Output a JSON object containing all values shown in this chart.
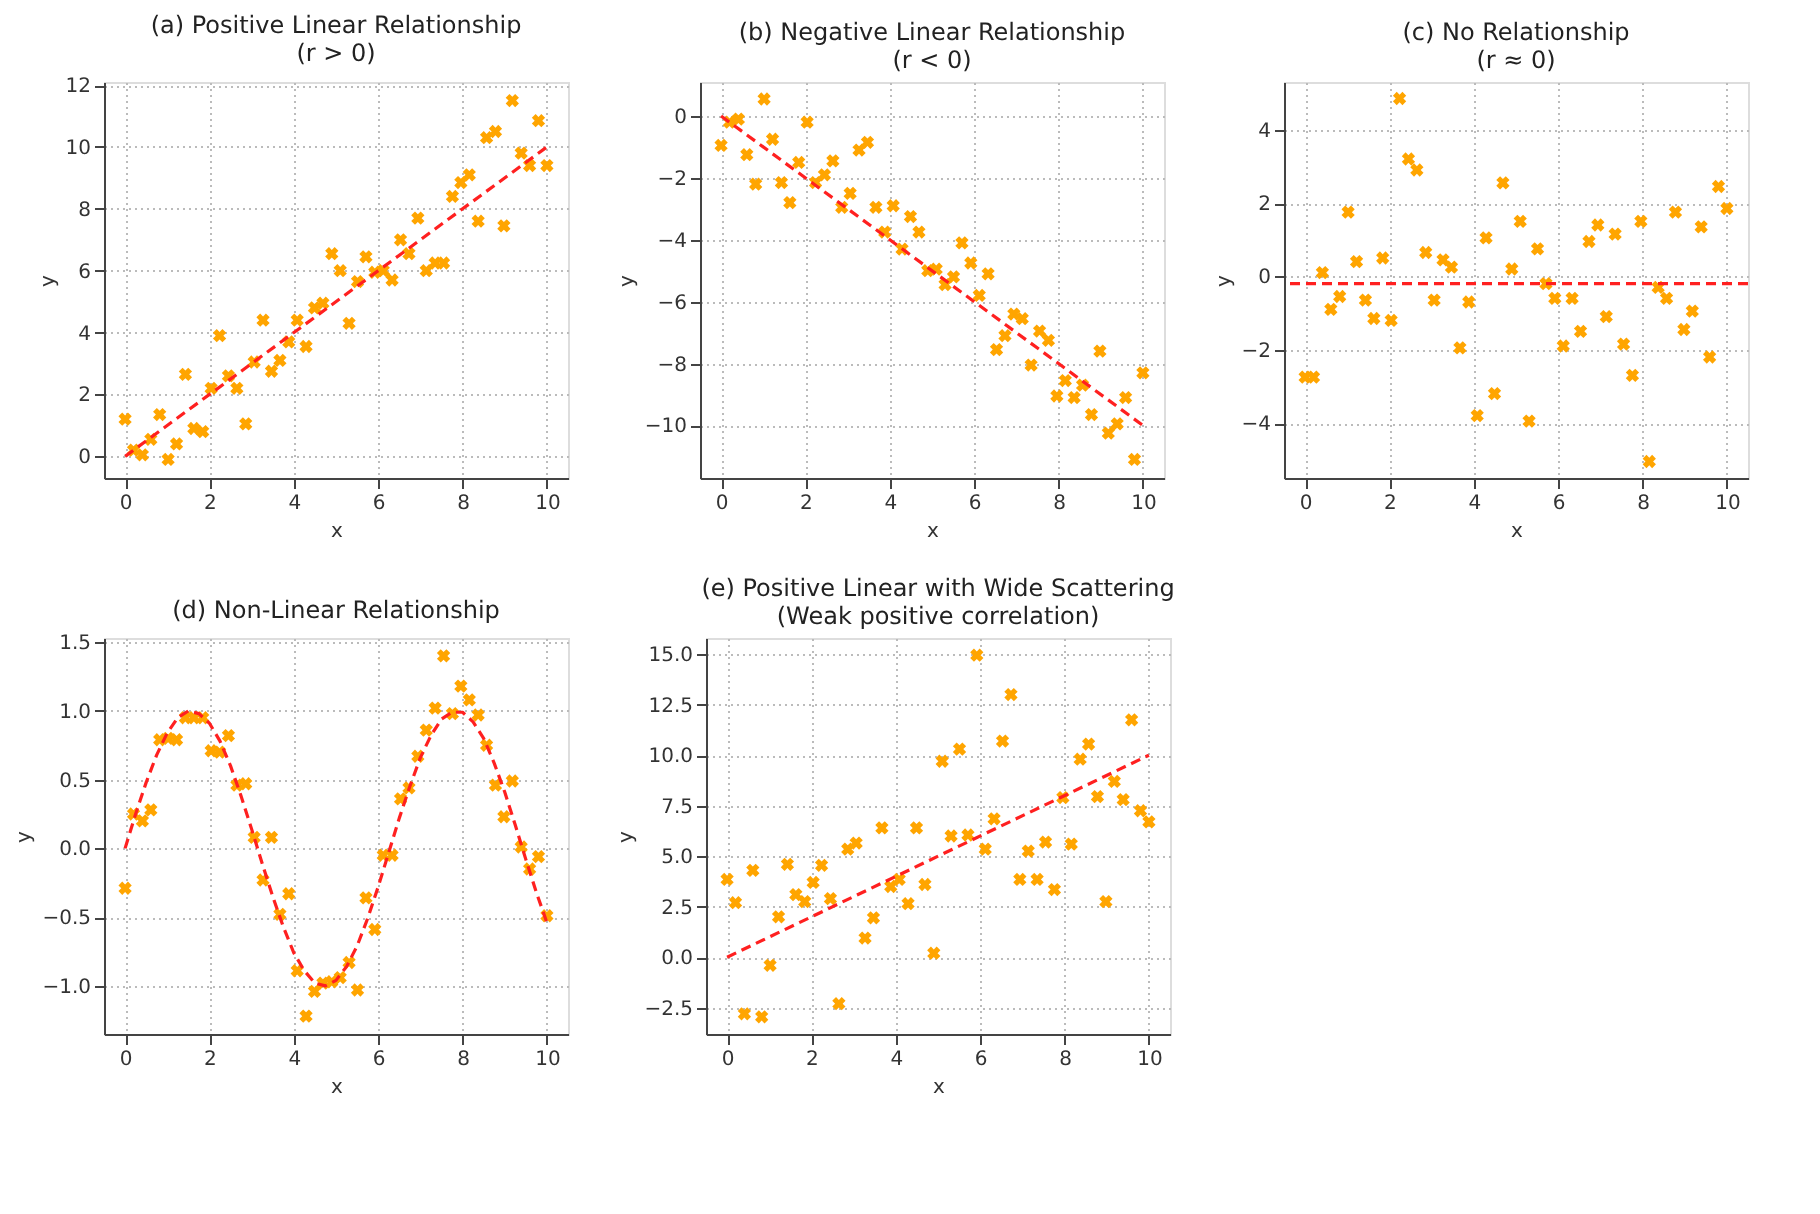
{
  "chart_data": [
    {
      "type": "scatter",
      "title": "(a) Positive Linear Relationship\n(r > 0)",
      "xlabel": "x",
      "ylabel": "y",
      "grid": true,
      "x": [
        0,
        0.2,
        0.41,
        0.61,
        0.82,
        1.02,
        1.22,
        1.43,
        1.63,
        1.84,
        2.04,
        2.24,
        2.45,
        2.65,
        2.86,
        3.06,
        3.27,
        3.47,
        3.67,
        3.88,
        4.08,
        4.29,
        4.49,
        4.69,
        4.9,
        5.1,
        5.31,
        5.51,
        5.71,
        5.92,
        6.12,
        6.33,
        6.53,
        6.73,
        6.94,
        7.14,
        7.35,
        7.55,
        7.76,
        7.96,
        8.16,
        8.37,
        8.57,
        8.78,
        8.98,
        9.18,
        9.39,
        9.59,
        9.8,
        10
      ],
      "series": [
        {
          "marker": "cross",
          "color": "#ffa500",
          "values": [
            1.2,
            0.2,
            0.05,
            0.55,
            1.35,
            -0.1,
            0.4,
            2.65,
            0.9,
            0.8,
            2.2,
            3.9,
            2.6,
            2.2,
            1.05,
            3.05,
            4.4,
            2.75,
            3.1,
            3.7,
            4.4,
            3.55,
            4.8,
            4.95,
            6.55,
            6.0,
            4.3,
            5.65,
            6.45,
            5.95,
            6.0,
            5.7,
            7.0,
            6.55,
            7.7,
            6.0,
            6.25,
            6.25,
            8.4,
            8.85,
            9.1,
            7.6,
            10.3,
            10.5,
            7.45,
            11.5,
            9.8,
            9.4,
            10.85,
            9.4
          ]
        },
        {
          "type": "line",
          "color": "#ff2020",
          "line_style": "dashed",
          "x": [
            0,
            10
          ],
          "values": [
            0,
            10
          ]
        }
      ],
      "xlim": [
        -0.5,
        10.5
      ],
      "ylim": [
        -0.7,
        12.1
      ],
      "xticks": [
        0,
        2,
        4,
        6,
        8,
        10
      ],
      "yticks": [
        0,
        2,
        4,
        6,
        8,
        10,
        12
      ]
    },
    {
      "type": "scatter",
      "title": "(b) Negative Linear Relationship\n(r < 0)",
      "xlabel": "x",
      "ylabel": "y",
      "grid": true,
      "x": [
        0,
        0.2,
        0.41,
        0.61,
        0.82,
        1.02,
        1.22,
        1.43,
        1.63,
        1.84,
        2.04,
        2.24,
        2.45,
        2.65,
        2.86,
        3.06,
        3.27,
        3.47,
        3.67,
        3.88,
        4.08,
        4.29,
        4.49,
        4.69,
        4.9,
        5.1,
        5.31,
        5.51,
        5.71,
        5.92,
        6.12,
        6.33,
        6.53,
        6.73,
        6.94,
        7.14,
        7.35,
        7.55,
        7.76,
        7.96,
        8.16,
        8.37,
        8.57,
        8.78,
        8.98,
        9.18,
        9.39,
        9.59,
        9.8,
        10
      ],
      "series": [
        {
          "marker": "cross",
          "color": "#ffa500",
          "values": [
            -0.95,
            -0.2,
            -0.1,
            -1.25,
            -2.2,
            0.55,
            -0.75,
            -2.15,
            -2.8,
            -1.5,
            -0.2,
            -2.15,
            -1.9,
            -1.45,
            -2.95,
            -2.5,
            -1.1,
            -0.85,
            -2.95,
            -3.75,
            -2.9,
            -4.3,
            -3.25,
            -3.75,
            -5.0,
            -4.95,
            -5.45,
            -5.2,
            -4.1,
            -4.75,
            -5.8,
            -5.1,
            -7.55,
            -7.1,
            -6.4,
            -6.55,
            -8.05,
            -6.95,
            -7.25,
            -9.05,
            -8.55,
            -9.1,
            -8.7,
            -9.65,
            -7.6,
            -10.25,
            -9.95,
            -9.1,
            -11.1,
            -8.3
          ]
        },
        {
          "type": "line",
          "color": "#ff2020",
          "line_style": "dashed",
          "x": [
            0,
            10
          ],
          "values": [
            0,
            -10
          ]
        }
      ],
      "xlim": [
        -0.5,
        10.5
      ],
      "ylim": [
        -11.7,
        1.1
      ],
      "xticks": [
        0,
        2,
        4,
        6,
        8,
        10
      ],
      "yticks": [
        -10,
        -8,
        -6,
        -4,
        -2,
        0
      ]
    },
    {
      "type": "scatter",
      "title": "(c) No Relationship\n(r ≈ 0)",
      "xlabel": "x",
      "ylabel": "y",
      "grid": true,
      "x": [
        0,
        0.2,
        0.41,
        0.61,
        0.82,
        1.02,
        1.22,
        1.43,
        1.63,
        1.84,
        2.04,
        2.24,
        2.45,
        2.65,
        2.86,
        3.06,
        3.27,
        3.47,
        3.67,
        3.88,
        4.08,
        4.29,
        4.49,
        4.69,
        4.9,
        5.1,
        5.31,
        5.51,
        5.71,
        5.92,
        6.12,
        6.33,
        6.53,
        6.73,
        6.94,
        7.14,
        7.35,
        7.55,
        7.76,
        7.96,
        8.16,
        8.37,
        8.57,
        8.78,
        8.98,
        9.18,
        9.39,
        9.59,
        9.8,
        10
      ],
      "series": [
        {
          "marker": "cross",
          "color": "#ffa500",
          "values": [
            -2.75,
            -2.75,
            0.1,
            -0.9,
            -0.55,
            1.75,
            0.4,
            -0.65,
            -1.15,
            0.5,
            -1.2,
            4.85,
            3.2,
            2.9,
            0.65,
            -0.65,
            0.45,
            0.25,
            -1.95,
            -0.7,
            -3.8,
            1.05,
            -3.2,
            2.55,
            0.2,
            1.5,
            -3.95,
            0.75,
            -0.2,
            -0.6,
            -1.9,
            -0.6,
            -1.5,
            0.95,
            1.4,
            -1.1,
            1.15,
            -1.85,
            -2.7,
            1.5,
            -5.05,
            -0.3,
            -0.6,
            1.75,
            -1.45,
            -0.95,
            1.35,
            -2.2,
            2.45,
            1.85
          ]
        }
      ],
      "ref_lines": [
        {
          "axis": "y",
          "value": -0.2,
          "color": "#ff2020",
          "line_style": "dashed"
        }
      ],
      "xlim": [
        -0.5,
        10.5
      ],
      "ylim": [
        -5.5,
        5.3
      ],
      "xticks": [
        0,
        2,
        4,
        6,
        8,
        10
      ],
      "yticks": [
        -4,
        -2,
        0,
        2,
        4
      ]
    },
    {
      "type": "scatter",
      "title": "(d) Non-Linear Relationship",
      "xlabel": "x",
      "ylabel": "y",
      "grid": true,
      "x": [
        0,
        0.2,
        0.41,
        0.61,
        0.82,
        1.02,
        1.22,
        1.43,
        1.63,
        1.84,
        2.04,
        2.24,
        2.45,
        2.65,
        2.86,
        3.06,
        3.27,
        3.47,
        3.67,
        3.88,
        4.08,
        4.29,
        4.49,
        4.69,
        4.9,
        5.1,
        5.31,
        5.51,
        5.71,
        5.92,
        6.12,
        6.33,
        6.53,
        6.73,
        6.94,
        7.14,
        7.35,
        7.55,
        7.76,
        7.96,
        8.16,
        8.37,
        8.57,
        8.78,
        8.98,
        9.18,
        9.39,
        9.59,
        9.8,
        10
      ],
      "series": [
        {
          "marker": "cross",
          "color": "#ffa500",
          "values": [
            -0.29,
            0.25,
            0.2,
            0.28,
            0.79,
            0.8,
            0.79,
            0.95,
            0.95,
            0.95,
            0.71,
            0.7,
            0.82,
            0.46,
            0.47,
            0.08,
            -0.23,
            0.08,
            -0.48,
            -0.33,
            -0.89,
            -1.22,
            -1.04,
            -0.98,
            -0.97,
            -0.94,
            -0.83,
            -1.03,
            -0.36,
            -0.59,
            -0.05,
            -0.05,
            0.36,
            0.44,
            0.67,
            0.86,
            1.02,
            1.4,
            0.98,
            1.18,
            1.08,
            0.97,
            0.75,
            0.46,
            0.23,
            0.49,
            0.01,
            -0.15,
            -0.06,
            -0.49
          ]
        },
        {
          "type": "line",
          "color": "#ff2020",
          "line_style": "dashed",
          "x": [
            0,
            0.25,
            0.5,
            0.75,
            1,
            1.25,
            1.5,
            1.75,
            2,
            2.25,
            2.5,
            2.75,
            3,
            3.25,
            3.5,
            3.75,
            4,
            4.25,
            4.5,
            4.75,
            5,
            5.25,
            5.5,
            5.75,
            6,
            6.25,
            6.5,
            6.75,
            7,
            7.25,
            7.5,
            7.75,
            8,
            8.25,
            8.5,
            8.75,
            9,
            9.25,
            9.5,
            9.75,
            10
          ],
          "values": [
            0,
            0.25,
            0.48,
            0.68,
            0.84,
            0.95,
            1.0,
            0.98,
            0.91,
            0.78,
            0.6,
            0.38,
            0.14,
            -0.11,
            -0.35,
            -0.57,
            -0.76,
            -0.89,
            -0.98,
            -1.0,
            -0.96,
            -0.86,
            -0.71,
            -0.51,
            -0.28,
            -0.03,
            0.22,
            0.45,
            0.66,
            0.82,
            0.94,
            0.99,
            0.99,
            0.92,
            0.8,
            0.62,
            0.41,
            0.17,
            -0.08,
            -0.32,
            -0.54
          ]
        }
      ],
      "xlim": [
        -0.5,
        10.5
      ],
      "ylim": [
        -1.35,
        1.53
      ],
      "xticks": [
        0,
        2,
        4,
        6,
        8,
        10
      ],
      "yticks": [
        {
          "value": -1,
          "label": "−1.0"
        },
        {
          "value": -0.5,
          "label": "−0.5"
        },
        {
          "value": 0,
          "label": "0.0"
        },
        {
          "value": 0.5,
          "label": "0.5"
        },
        {
          "value": 1,
          "label": "1.0"
        },
        {
          "value": 1.5,
          "label": "1.5"
        }
      ]
    },
    {
      "type": "scatter",
      "title": "(e) Positive Linear with Wide Scattering\n(Weak positive correlation)",
      "xlabel": "x",
      "ylabel": "y",
      "grid": true,
      "x": [
        0,
        0.2,
        0.41,
        0.61,
        0.82,
        1.02,
        1.22,
        1.43,
        1.63,
        1.84,
        2.04,
        2.24,
        2.45,
        2.65,
        2.86,
        3.06,
        3.27,
        3.47,
        3.67,
        3.88,
        4.08,
        4.29,
        4.49,
        4.69,
        4.9,
        5.1,
        5.31,
        5.51,
        5.71,
        5.92,
        6.12,
        6.33,
        6.53,
        6.73,
        6.94,
        7.14,
        7.35,
        7.55,
        7.76,
        7.96,
        8.16,
        8.37,
        8.57,
        8.78,
        8.98,
        9.18,
        9.39,
        9.59,
        9.8,
        10
      ],
      "series": [
        {
          "marker": "cross",
          "color": "#ffa500",
          "values": [
            3.85,
            2.7,
            -2.8,
            4.3,
            -2.95,
            -0.4,
            2.0,
            4.6,
            3.1,
            2.75,
            3.7,
            4.55,
            2.9,
            -2.3,
            5.35,
            5.65,
            0.95,
            1.95,
            6.4,
            3.5,
            3.85,
            2.65,
            6.4,
            3.6,
            0.2,
            9.7,
            6.0,
            10.3,
            6.05,
            14.95,
            5.35,
            6.85,
            10.7,
            13.0,
            3.85,
            5.25,
            3.85,
            5.7,
            3.35,
            7.9,
            5.6,
            9.8,
            10.55,
            7.95,
            2.75,
            8.7,
            7.8,
            11.75,
            7.25,
            6.7
          ]
        },
        {
          "type": "line",
          "color": "#ff2020",
          "line_style": "dashed",
          "x": [
            0,
            10
          ],
          "values": [
            0,
            10
          ]
        }
      ],
      "xlim": [
        -0.5,
        10.5
      ],
      "ylim": [
        -3.8,
        15.8
      ],
      "xticks": [
        0,
        2,
        4,
        6,
        8,
        10
      ],
      "yticks": [
        {
          "value": -2.5,
          "label": "−2.5"
        },
        {
          "value": 0,
          "label": "0.0"
        },
        {
          "value": 2.5,
          "label": "2.5"
        },
        {
          "value": 5,
          "label": "5.0"
        },
        {
          "value": 7.5,
          "label": "7.5"
        },
        {
          "value": 10,
          "label": "10.0"
        },
        {
          "value": 12.5,
          "label": "12.5"
        },
        {
          "value": 15,
          "label": "15.0"
        }
      ]
    }
  ]
}
